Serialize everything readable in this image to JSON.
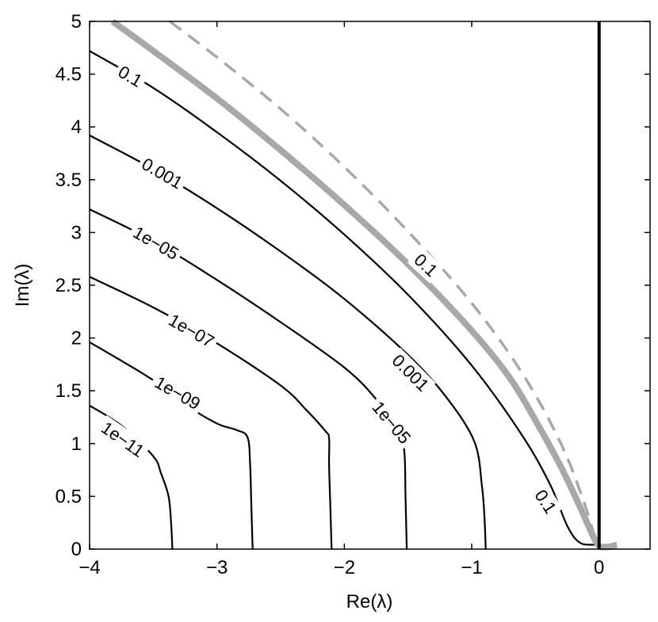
{
  "chart_data": {
    "type": "line",
    "title": "",
    "xlabel": "Re(λ)",
    "ylabel": "Im(λ)",
    "xlim": [
      -4,
      0.4
    ],
    "ylim": [
      0,
      5
    ],
    "xticks": [
      -4,
      -3,
      -2,
      -1,
      0
    ],
    "xtick_labels": [
      "−4",
      "−3",
      "−2",
      "−1",
      "0"
    ],
    "yticks": [
      0,
      0.5,
      1,
      1.5,
      2,
      2.5,
      3,
      3.5,
      4,
      4.5,
      5
    ],
    "ytick_labels": [
      "0",
      "0.5",
      "1",
      "1.5",
      "2",
      "2.5",
      "3",
      "3.5",
      "4",
      "4.5",
      "5"
    ],
    "grid": false,
    "legend": "none",
    "colors": {
      "contour": "#000000",
      "boundary": "#a8a8a8",
      "dashed": "#a8a8a8",
      "imag_axis": "#000000"
    },
    "series": [
      {
        "kind": "contour",
        "level": "1e-11",
        "points": [
          [
            -4,
            1.36
          ],
          [
            -3.75,
            1.17
          ],
          [
            -3.5,
            0.88
          ],
          [
            -3.44,
            0.72
          ],
          [
            -3.38,
            0.5
          ],
          [
            -3.36,
            0.25
          ],
          [
            -3.35,
            0
          ]
        ]
      },
      {
        "kind": "contour",
        "level": "1e-09",
        "points": [
          [
            -4,
            1.96
          ],
          [
            -3.8,
            1.82
          ],
          [
            -3.5,
            1.6
          ],
          [
            -3.25,
            1.37
          ],
          [
            -3,
            1.19
          ],
          [
            -2.85,
            1.13
          ],
          [
            -2.76,
            1.06
          ],
          [
            -2.74,
            0.8
          ],
          [
            -2.73,
            0.4
          ],
          [
            -2.72,
            0
          ]
        ]
      },
      {
        "kind": "contour",
        "level": "1e-07",
        "points": [
          [
            -4,
            2.58
          ],
          [
            -3.5,
            2.29
          ],
          [
            -3,
            1.95
          ],
          [
            -2.5,
            1.55
          ],
          [
            -2.3,
            1.32
          ],
          [
            -2.15,
            1.12
          ],
          [
            -2.12,
            1.05
          ],
          [
            -2.12,
            0.8
          ],
          [
            -2.11,
            0.4
          ],
          [
            -2.1,
            0
          ]
        ]
      },
      {
        "kind": "contour",
        "level": "1e-05",
        "points": [
          [
            -4,
            3.22
          ],
          [
            -3.5,
            2.92
          ],
          [
            -3,
            2.55
          ],
          [
            -2.5,
            2.15
          ],
          [
            -2,
            1.72
          ],
          [
            -1.75,
            1.42
          ],
          [
            -1.58,
            1.12
          ],
          [
            -1.53,
            0.93
          ],
          [
            -1.52,
            0.5
          ],
          [
            -1.51,
            0
          ]
        ]
      },
      {
        "kind": "contour",
        "level": "0.001",
        "points": [
          [
            -4,
            3.92
          ],
          [
            -3.5,
            3.6
          ],
          [
            -3,
            3.23
          ],
          [
            -2.5,
            2.82
          ],
          [
            -2,
            2.37
          ],
          [
            -1.5,
            1.84
          ],
          [
            -1.2,
            1.44
          ],
          [
            -0.98,
            1.02
          ],
          [
            -0.92,
            0.6
          ],
          [
            -0.9,
            0.3
          ],
          [
            -0.89,
            0
          ]
        ]
      },
      {
        "kind": "contour",
        "level": "0.1",
        "points": [
          [
            -4,
            4.72
          ],
          [
            -3.5,
            4.37
          ],
          [
            -3,
            3.95
          ],
          [
            -2.5,
            3.49
          ],
          [
            -2,
            2.98
          ],
          [
            -1.5,
            2.41
          ],
          [
            -1,
            1.74
          ],
          [
            -0.6,
            1.07
          ],
          [
            -0.38,
            0.6
          ],
          [
            -0.25,
            0.22
          ],
          [
            -0.15,
            0.06
          ],
          [
            -0.02,
            0.04
          ],
          [
            0.02,
            0.02
          ],
          [
            0.05,
            0.01
          ]
        ]
      },
      {
        "kind": "boundary",
        "points": [
          [
            -3.82,
            5
          ],
          [
            -3.5,
            4.72
          ],
          [
            -3,
            4.27
          ],
          [
            -2.5,
            3.78
          ],
          [
            -2,
            3.26
          ],
          [
            -1.5,
            2.7
          ],
          [
            -1,
            2.07
          ],
          [
            -0.7,
            1.62
          ],
          [
            -0.5,
            1.22
          ],
          [
            -0.3,
            0.78
          ],
          [
            -0.15,
            0.4
          ],
          [
            -0.02,
            0.06
          ],
          [
            0.05,
            0.02
          ],
          [
            0.14,
            0.04
          ]
        ]
      },
      {
        "kind": "dashed",
        "points": [
          [
            -3.37,
            5
          ],
          [
            -3,
            4.66
          ],
          [
            -2.5,
            4.17
          ],
          [
            -2,
            3.62
          ],
          [
            -1.5,
            3.01
          ],
          [
            -1,
            2.33
          ],
          [
            -0.6,
            1.66
          ],
          [
            -0.3,
            1
          ],
          [
            -0.12,
            0.45
          ],
          [
            -0.02,
            0.05
          ]
        ]
      },
      {
        "kind": "imag-axis",
        "points": [
          [
            0,
            0
          ],
          [
            0,
            5
          ]
        ]
      }
    ],
    "annotations": [
      {
        "text": "0.1",
        "x": -3.68,
        "y": 4.48,
        "angle": 30
      },
      {
        "text": "0.001",
        "x": -3.43,
        "y": 3.56,
        "angle": 30
      },
      {
        "text": "1e−05",
        "x": -3.48,
        "y": 2.9,
        "angle": 30
      },
      {
        "text": "1e−07",
        "x": -3.2,
        "y": 2.07,
        "angle": 30
      },
      {
        "text": "1e−09",
        "x": -3.31,
        "y": 1.48,
        "angle": 30
      },
      {
        "text": "1e−11",
        "x": -3.74,
        "y": 1.04,
        "angle": 35
      },
      {
        "text": "0.1",
        "x": -1.36,
        "y": 2.69,
        "angle": 43
      },
      {
        "text": "0.001",
        "x": -1.48,
        "y": 1.67,
        "angle": 45
      },
      {
        "text": "1e−05",
        "x": -1.63,
        "y": 1.2,
        "angle": 50
      },
      {
        "text": "0.1",
        "x": -0.42,
        "y": 0.45,
        "angle": 57
      }
    ]
  }
}
